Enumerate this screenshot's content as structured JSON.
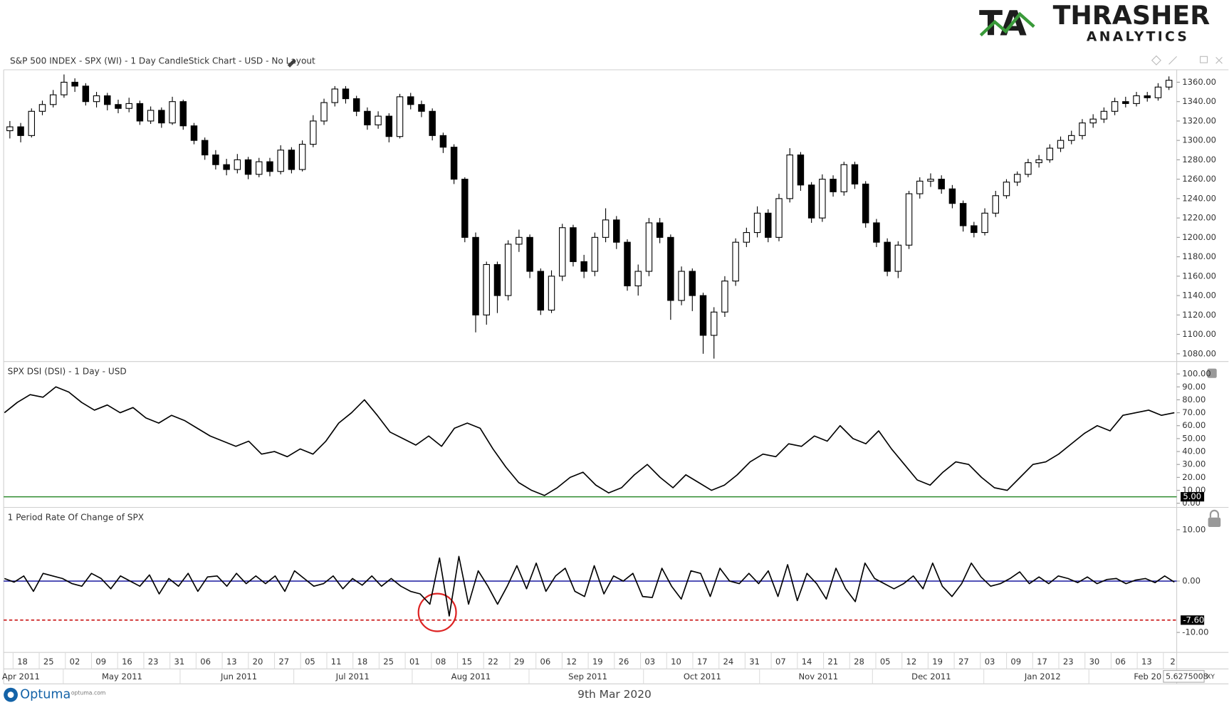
{
  "logo": {
    "mark": "TA",
    "name": "THRASHER",
    "sub": "ANALYTICS"
  },
  "chart_data": [
    {
      "type": "candlestick",
      "title": "S&P 500 INDEX - SPX (WI) - 1 Day CandleStick Chart - USD - No Layout",
      "up_color": "#ffffff",
      "down_color": "#000000",
      "open": [
        1310,
        1314,
        1305,
        1330,
        1337,
        1347,
        1360,
        1356,
        1340,
        1346,
        1337,
        1333,
        1338,
        1320,
        1331,
        1318,
        1340,
        1315,
        1300,
        1285,
        1275,
        1270,
        1280,
        1265,
        1278,
        1268,
        1290,
        1270,
        1296,
        1320,
        1339,
        1353,
        1343,
        1330,
        1316,
        1325,
        1304,
        1345,
        1337,
        1330,
        1305,
        1293,
        1260,
        1200,
        1120,
        1172,
        1140,
        1193,
        1200,
        1165,
        1125,
        1160,
        1210,
        1175,
        1165,
        1200,
        1218,
        1195,
        1150,
        1165,
        1215,
        1200,
        1135,
        1165,
        1140,
        1099,
        1123,
        1155,
        1195,
        1205,
        1225,
        1200,
        1240,
        1285,
        1254,
        1220,
        1260,
        1247,
        1275,
        1255,
        1215,
        1195,
        1165,
        1192,
        1245,
        1258,
        1260,
        1250,
        1235,
        1212,
        1205,
        1225,
        1243,
        1257,
        1265,
        1277,
        1280,
        1292,
        1300,
        1305,
        1318,
        1322,
        1330,
        1340,
        1338,
        1346,
        1344,
        1355
      ],
      "high": [
        1320,
        1318,
        1333,
        1341,
        1352,
        1368,
        1364,
        1359,
        1350,
        1349,
        1342,
        1344,
        1341,
        1335,
        1334,
        1345,
        1342,
        1318,
        1303,
        1290,
        1281,
        1286,
        1283,
        1282,
        1282,
        1295,
        1293,
        1300,
        1326,
        1343,
        1356,
        1356,
        1346,
        1334,
        1330,
        1328,
        1348,
        1349,
        1341,
        1333,
        1308,
        1296,
        1262,
        1205,
        1175,
        1175,
        1197,
        1208,
        1203,
        1168,
        1166,
        1214,
        1213,
        1182,
        1205,
        1230,
        1222,
        1198,
        1172,
        1220,
        1220,
        1203,
        1170,
        1168,
        1143,
        1128,
        1160,
        1199,
        1210,
        1232,
        1229,
        1245,
        1292,
        1288,
        1257,
        1265,
        1264,
        1278,
        1278,
        1258,
        1219,
        1199,
        1196,
        1248,
        1262,
        1266,
        1264,
        1254,
        1238,
        1216,
        1230,
        1248,
        1260,
        1268,
        1281,
        1285,
        1296,
        1304,
        1310,
        1322,
        1327,
        1334,
        1344,
        1345,
        1350,
        1350,
        1359,
        1366
      ],
      "low": [
        1302,
        1298,
        1303,
        1326,
        1334,
        1344,
        1350,
        1336,
        1334,
        1331,
        1328,
        1329,
        1316,
        1317,
        1313,
        1316,
        1311,
        1296,
        1280,
        1270,
        1264,
        1266,
        1260,
        1262,
        1263,
        1265,
        1266,
        1268,
        1293,
        1316,
        1335,
        1338,
        1325,
        1311,
        1312,
        1298,
        1302,
        1332,
        1324,
        1300,
        1287,
        1255,
        1195,
        1102,
        1110,
        1122,
        1135,
        1185,
        1158,
        1120,
        1122,
        1155,
        1170,
        1158,
        1160,
        1195,
        1188,
        1145,
        1140,
        1160,
        1194,
        1115,
        1130,
        1124,
        1080,
        1075,
        1118,
        1150,
        1190,
        1200,
        1195,
        1196,
        1236,
        1248,
        1215,
        1216,
        1242,
        1243,
        1250,
        1210,
        1190,
        1160,
        1158,
        1188,
        1240,
        1252,
        1245,
        1230,
        1206,
        1200,
        1202,
        1221,
        1240,
        1253,
        1262,
        1272,
        1277,
        1288,
        1296,
        1301,
        1313,
        1318,
        1326,
        1334,
        1335,
        1340,
        1341,
        1352
      ],
      "close": [
        1314,
        1305,
        1330,
        1337,
        1347,
        1360,
        1356,
        1340,
        1346,
        1337,
        1333,
        1338,
        1320,
        1331,
        1318,
        1340,
        1315,
        1300,
        1285,
        1275,
        1270,
        1280,
        1265,
        1278,
        1268,
        1290,
        1270,
        1296,
        1320,
        1339,
        1353,
        1343,
        1330,
        1316,
        1325,
        1304,
        1345,
        1337,
        1330,
        1305,
        1293,
        1260,
        1200,
        1120,
        1172,
        1140,
        1193,
        1200,
        1165,
        1125,
        1160,
        1210,
        1175,
        1165,
        1200,
        1218,
        1195,
        1150,
        1165,
        1215,
        1200,
        1135,
        1165,
        1140,
        1099,
        1123,
        1155,
        1195,
        1205,
        1225,
        1200,
        1240,
        1285,
        1254,
        1220,
        1260,
        1247,
        1275,
        1255,
        1215,
        1195,
        1165,
        1192,
        1245,
        1258,
        1260,
        1250,
        1235,
        1212,
        1205,
        1225,
        1243,
        1257,
        1265,
        1277,
        1280,
        1292,
        1300,
        1305,
        1318,
        1322,
        1330,
        1340,
        1338,
        1346,
        1344,
        1355,
        1362
      ],
      "ylim": [
        1072,
        1372
      ],
      "yticks": [
        {
          "value": 1080,
          "label": "1080.00"
        },
        {
          "value": 1100,
          "label": "1100.00"
        },
        {
          "value": 1120,
          "label": "1120.00"
        },
        {
          "value": 1140,
          "label": "1140.00"
        },
        {
          "value": 1160,
          "label": "1160.00"
        },
        {
          "value": 1180,
          "label": "1180.00"
        },
        {
          "value": 1200,
          "label": "1200.00"
        },
        {
          "value": 1220,
          "label": "1220.00"
        },
        {
          "value": 1240,
          "label": "1240.00"
        },
        {
          "value": 1260,
          "label": "1260.00"
        },
        {
          "value": 1280,
          "label": "1280.00"
        },
        {
          "value": 1300,
          "label": "1300.00"
        },
        {
          "value": 1320,
          "label": "1320.00"
        },
        {
          "value": 1340,
          "label": "1340.00"
        },
        {
          "value": 1360,
          "label": "1360.00"
        }
      ]
    },
    {
      "type": "line",
      "title": "SPX DSI (DSI) - 1 Day - USD",
      "color": "#000000",
      "values": [
        70,
        78,
        84,
        82,
        90,
        86,
        78,
        72,
        76,
        70,
        74,
        66,
        62,
        68,
        64,
        58,
        52,
        48,
        44,
        48,
        38,
        40,
        36,
        42,
        38,
        48,
        62,
        70,
        80,
        68,
        55,
        50,
        45,
        52,
        44,
        58,
        62,
        58,
        42,
        28,
        16,
        10,
        6,
        12,
        20,
        24,
        14,
        8,
        12,
        22,
        30,
        20,
        12,
        22,
        16,
        10,
        14,
        22,
        32,
        38,
        36,
        46,
        44,
        52,
        48,
        60,
        50,
        46,
        56,
        42,
        30,
        18,
        14,
        24,
        32,
        30,
        20,
        12,
        10,
        20,
        30,
        32,
        38,
        46,
        54,
        60,
        56,
        68,
        70,
        72,
        68,
        70
      ],
      "ylim": [
        -3.2,
        109
      ],
      "yticks": [
        {
          "value": 0,
          "label": "0.00"
        },
        {
          "value": 10,
          "label": "10.00"
        },
        {
          "value": 20,
          "label": "20.00"
        },
        {
          "value": 30,
          "label": "30.00"
        },
        {
          "value": 40,
          "label": "40.00"
        },
        {
          "value": 50,
          "label": "50.00"
        },
        {
          "value": 60,
          "label": "60.00"
        },
        {
          "value": 70,
          "label": "70.00"
        },
        {
          "value": 80,
          "label": "80.00"
        },
        {
          "value": 90,
          "label": "90.00"
        },
        {
          "value": 100,
          "label": "100.00"
        }
      ],
      "reference_lines": [
        {
          "value": 5,
          "label": "5.00",
          "color": "#2e8b2e"
        }
      ]
    },
    {
      "type": "line",
      "title": "1 Period Rate Of Change of SPX",
      "color": "#000000",
      "values": [
        0.5,
        -0.2,
        1,
        -2,
        1.5,
        1,
        0.5,
        -0.5,
        -1,
        1.5,
        0.5,
        -1.5,
        1,
        0,
        -1,
        1.2,
        -2.5,
        0.5,
        -1,
        1.5,
        -2,
        0.8,
        1,
        -1,
        1.5,
        -0.5,
        1,
        -0.5,
        1,
        -2,
        2,
        0.5,
        -1,
        -0.5,
        1,
        -1.5,
        0.5,
        -0.8,
        1,
        -1,
        0.5,
        -1,
        -2,
        -2.5,
        -4.5,
        4.5,
        -6.8,
        4.8,
        -4.5,
        2,
        -1,
        -4.5,
        -1,
        3,
        -1.5,
        3.5,
        -2,
        1,
        2.5,
        -2,
        -3,
        3,
        -2.5,
        1,
        0,
        1.5,
        -3,
        -3.2,
        2.5,
        -1,
        -3.5,
        2,
        1.5,
        -3,
        2.5,
        0,
        -0.5,
        1.5,
        -0.5,
        2,
        -3,
        3.2,
        -3.8,
        1.5,
        -0.5,
        -3.5,
        2.5,
        -1.5,
        -4,
        3.5,
        0.5,
        -0.5,
        -1.5,
        -0.5,
        1,
        -1.5,
        3.5,
        -1,
        -3,
        -0.5,
        3.5,
        0.8,
        -1,
        -0.5,
        0.5,
        1.8,
        -0.5,
        0.8,
        -0.5,
        1,
        0.5,
        -0.3,
        0.8,
        -0.5,
        0.3,
        0.5,
        -0.5,
        0.2,
        0.5,
        -0.3,
        1,
        -0.2
      ],
      "ylim": [
        -13.9,
        14.2
      ],
      "yticks": [
        {
          "value": -10,
          "label": "-10.00"
        },
        {
          "value": 0,
          "label": "0.00"
        },
        {
          "value": 10,
          "label": "10.00"
        }
      ],
      "reference_lines": [
        {
          "value": 0,
          "color": "#1a1aa0"
        },
        {
          "value": -7.6,
          "label": "-7.60",
          "color": "#cc1f1f",
          "dash": true
        }
      ]
    }
  ],
  "date_axis": {
    "days": [
      "18",
      "25",
      "02",
      "09",
      "16",
      "23",
      "31",
      "06",
      "13",
      "20",
      "27",
      "05",
      "11",
      "18",
      "25",
      "01",
      "08",
      "15",
      "22",
      "29",
      "06",
      "12",
      "19",
      "26",
      "03",
      "10",
      "17",
      "24",
      "31",
      "07",
      "14",
      "21",
      "28",
      "05",
      "12",
      "19",
      "27",
      "03",
      "09",
      "17",
      "23",
      "30",
      "06",
      "13",
      "2"
    ],
    "months": [
      "Apr 2011",
      "May 2011",
      "Jun 2011",
      "Jul 2011",
      "Aug 2011",
      "Sep 2011",
      "Oct 2011",
      "Nov 2011",
      "Dec 2011",
      "Jan 2012",
      "Feb 20"
    ],
    "scale": "5.6275008",
    "scale_mode": "XY"
  },
  "footer": {
    "brand": "Optuma",
    "site": "optuma.com",
    "date": "9th Mar 2020"
  }
}
